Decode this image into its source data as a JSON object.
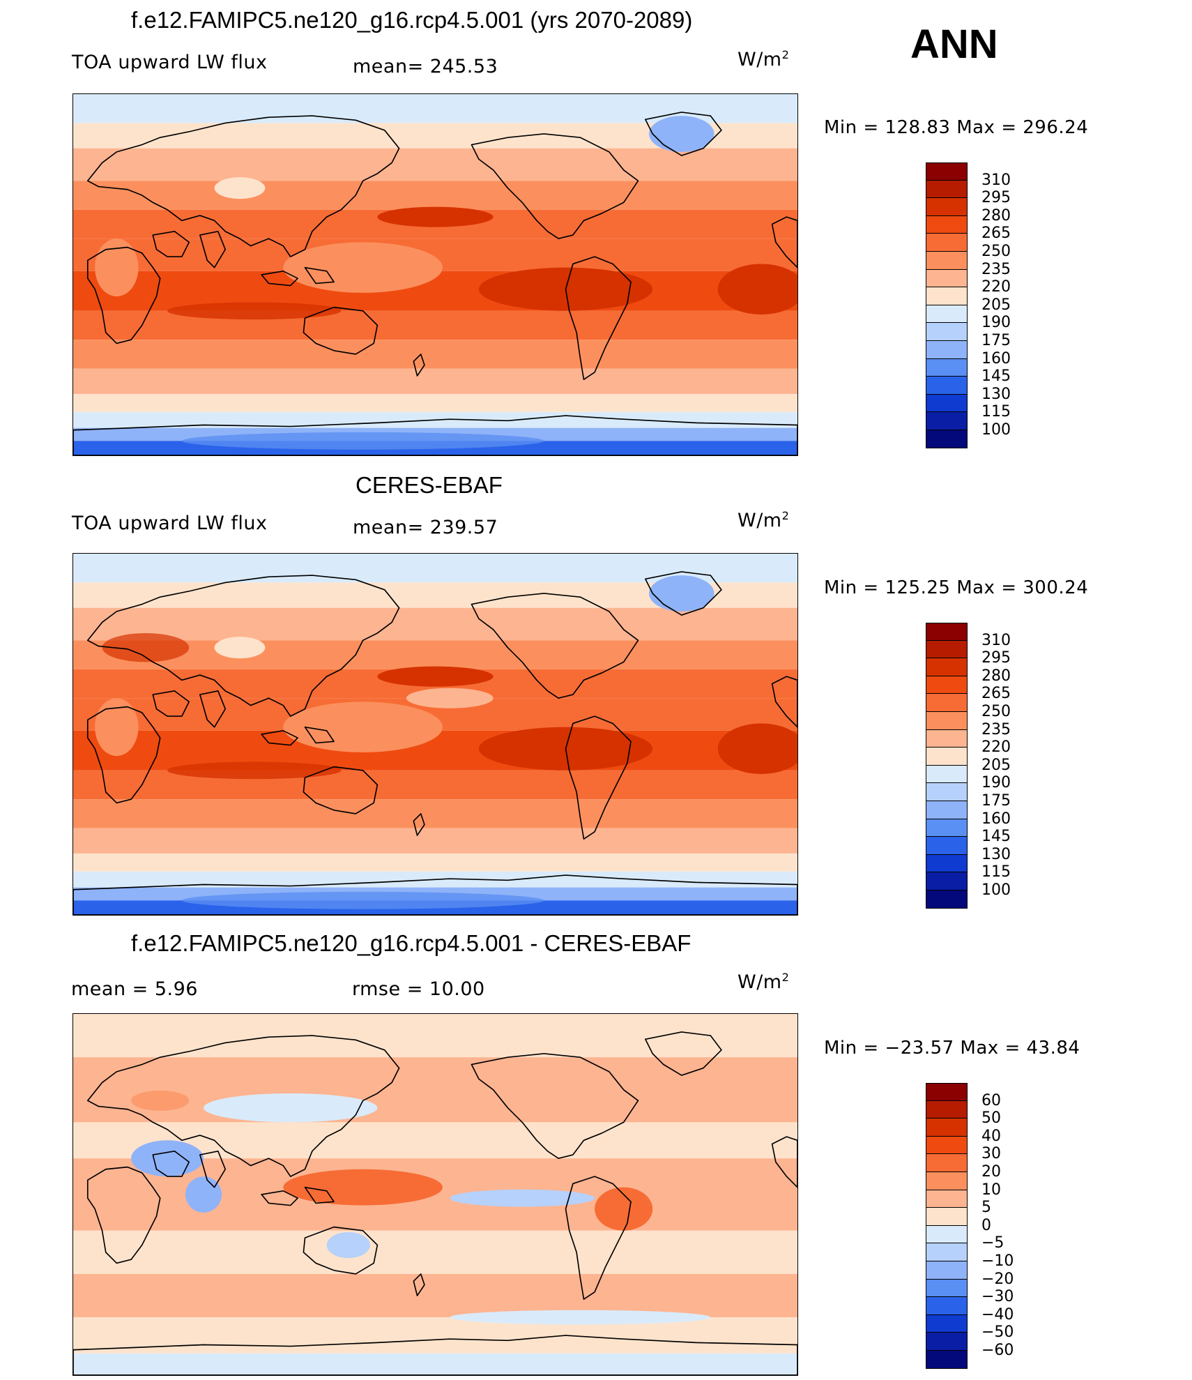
{
  "header": {
    "season": "ANN"
  },
  "panels": [
    {
      "title": "f.e12.FAMIPC5.ne120_g16.rcp4.5.001 (yrs 2070-2089)",
      "left_label": "TOA upward LW flux",
      "center_label": "mean=  245.53",
      "units_base": "W/m",
      "units_exp": "2",
      "minmax": "Min  =  128.83  Max  =  296.24",
      "scheme": "abs",
      "colorbar": {
        "labels": [
          "310",
          "295",
          "280",
          "265",
          "250",
          "235",
          "220",
          "205",
          "190",
          "175",
          "160",
          "145",
          "130",
          "115",
          "100"
        ],
        "colors": [
          "#8b0000",
          "#b51c00",
          "#d63200",
          "#ef4b10",
          "#f76c35",
          "#fb905e",
          "#fdb491",
          "#fee3cc",
          "#d9ebfb",
          "#b6d1fb",
          "#8fb3f8",
          "#5a8ff3",
          "#2a62ea",
          "#0f3bd0",
          "#0a1ea5",
          "#03087a"
        ]
      }
    },
    {
      "title": "CERES-EBAF",
      "left_label": "TOA upward LW flux",
      "center_label": "mean=  239.57",
      "units_base": "W/m",
      "units_exp": "2",
      "minmax": "Min  =  125.25  Max  =  300.24",
      "scheme": "abs",
      "colorbar": {
        "labels": [
          "310",
          "295",
          "280",
          "265",
          "250",
          "235",
          "220",
          "205",
          "190",
          "175",
          "160",
          "145",
          "130",
          "115",
          "100"
        ],
        "colors": [
          "#8b0000",
          "#b51c00",
          "#d63200",
          "#ef4b10",
          "#f76c35",
          "#fb905e",
          "#fdb491",
          "#fee3cc",
          "#d9ebfb",
          "#b6d1fb",
          "#8fb3f8",
          "#5a8ff3",
          "#2a62ea",
          "#0f3bd0",
          "#0a1ea5",
          "#03087a"
        ]
      }
    },
    {
      "title": "f.e12.FAMIPC5.ne120_g16.rcp4.5.001 - CERES-EBAF",
      "left_label": "mean  =      5.96",
      "center_label": "rmse  =     10.00",
      "units_base": "W/m",
      "units_exp": "2",
      "minmax": "Min  =  −23.57  Max  =    43.84",
      "scheme": "diff",
      "colorbar": {
        "labels": [
          "60",
          "50",
          "40",
          "30",
          "20",
          "10",
          "5",
          "0",
          "−5",
          "−10",
          "−20",
          "−30",
          "−40",
          "−50",
          "−60"
        ],
        "colors": [
          "#8b0000",
          "#b51c00",
          "#d63200",
          "#ef4b10",
          "#f76c35",
          "#fb905e",
          "#fdb491",
          "#fee3cc",
          "#d9ebfb",
          "#b6d1fb",
          "#8fb3f8",
          "#5a8ff3",
          "#2a62ea",
          "#0f3bd0",
          "#0a1ea5",
          "#03087a"
        ]
      }
    }
  ]
}
